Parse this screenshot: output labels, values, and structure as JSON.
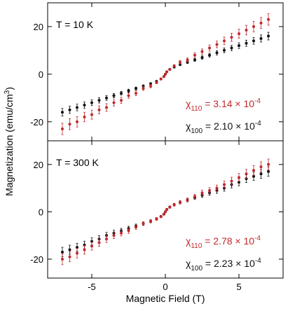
{
  "figure": {
    "xlabel": "Magnetic Field (T)",
    "ylabel": "Magnetization (emu/cm",
    "ylabel_sup": "3",
    "ylabel_end": ")"
  },
  "chart_data": [
    {
      "type": "scatter",
      "panel": "top",
      "annotation": "T = 10 K",
      "xlim": [
        -8,
        8
      ],
      "ylim": [
        -28,
        30
      ],
      "x_ticks": [
        -5,
        0,
        5
      ],
      "y_ticks": [
        -20,
        0,
        20
      ],
      "x_tick_labels": [
        "-5",
        "0",
        "5"
      ],
      "y_tick_labels": [
        "-20",
        "0",
        "20"
      ],
      "grid": false,
      "legend": [
        {
          "chi": "χ",
          "sub": "110",
          "value": " = 3.14 × 10",
          "exp": "-4",
          "color": "#c0282d"
        },
        {
          "chi": "χ",
          "sub": "100",
          "value": " = 2.10 × 10",
          "exp": "-4",
          "color": "#111111"
        }
      ],
      "series": [
        {
          "color": "#111111",
          "x": [
            -7,
            -6.5,
            -6,
            -5.5,
            -5,
            -4.5,
            -4,
            -3.5,
            -3,
            -2.5,
            -2,
            -1.5,
            -1,
            -0.6,
            -0.3,
            -0.1,
            0,
            0.1,
            0.3,
            0.6,
            1,
            1.5,
            2,
            2.5,
            3,
            3.5,
            4,
            4.5,
            5,
            5.5,
            6,
            6.5,
            7
          ],
          "y": [
            -16,
            -15,
            -14,
            -13,
            -12,
            -11,
            -10,
            -9,
            -8,
            -7,
            -6,
            -5,
            -4,
            -3,
            -2,
            -1,
            0,
            1,
            2,
            3,
            4,
            5,
            6,
            7,
            8,
            9,
            10,
            11,
            12,
            13,
            14,
            15,
            16
          ],
          "err": [
            1.6,
            1.5,
            1.4,
            1.3,
            1.2,
            1.1,
            1.0,
            0.9,
            0.8,
            0.7,
            0.6,
            0.5,
            0.4,
            0.3,
            0.3,
            0.3,
            0.3,
            0.3,
            0.3,
            0.3,
            0.4,
            0.5,
            0.6,
            0.7,
            0.8,
            0.9,
            1.0,
            1.1,
            1.2,
            1.3,
            1.4,
            1.5,
            1.6
          ]
        },
        {
          "color": "#c0282d",
          "x": [
            -7,
            -6.5,
            -6,
            -5.5,
            -5,
            -4.5,
            -4,
            -3.5,
            -3,
            -2.5,
            -2,
            -1.5,
            -1,
            -0.6,
            -0.3,
            -0.1,
            0,
            0.1,
            0.3,
            0.6,
            1,
            1.5,
            2,
            2.5,
            3,
            3.5,
            4,
            4.5,
            5,
            5.5,
            6,
            6.5,
            7
          ],
          "y": [
            -23,
            -21,
            -20,
            -18,
            -17,
            -15,
            -14,
            -12,
            -11,
            -9,
            -8,
            -6,
            -5,
            -3.5,
            -2,
            -1,
            0,
            1,
            2,
            3.5,
            5,
            6,
            8,
            9.5,
            11,
            12.5,
            14,
            15.5,
            17,
            18.5,
            20,
            21.5,
            23
          ],
          "err": [
            2.4,
            2.3,
            2.2,
            2.0,
            1.9,
            1.7,
            1.6,
            1.4,
            1.3,
            1.1,
            1.0,
            0.8,
            0.7,
            0.5,
            0.4,
            0.3,
            0.3,
            0.3,
            0.4,
            0.5,
            0.7,
            0.8,
            1.0,
            1.1,
            1.3,
            1.4,
            1.6,
            1.7,
            1.9,
            2.0,
            2.2,
            2.3,
            2.4
          ]
        }
      ]
    },
    {
      "type": "scatter",
      "panel": "bottom",
      "annotation": "T = 300 K",
      "xlim": [
        -8,
        8
      ],
      "ylim": [
        -28,
        30
      ],
      "x_ticks": [
        -5,
        0,
        5
      ],
      "y_ticks": [
        -20,
        0,
        20
      ],
      "x_tick_labels": [
        "-5",
        "0",
        "5"
      ],
      "y_tick_labels": [
        "-20",
        "0",
        "20"
      ],
      "grid": false,
      "legend": [
        {
          "chi": "χ",
          "sub": "110",
          "value": " = 2.78 × 10",
          "exp": "-4",
          "color": "#c0282d"
        },
        {
          "chi": "χ",
          "sub": "100",
          "value": " = 2.23 × 10",
          "exp": "-4",
          "color": "#111111"
        }
      ],
      "series": [
        {
          "color": "#111111",
          "x": [
            -7,
            -6.5,
            -6,
            -5.5,
            -5,
            -4.5,
            -4,
            -3.5,
            -3,
            -2.5,
            -2,
            -1.5,
            -1,
            -0.6,
            -0.3,
            -0.1,
            0,
            0.1,
            0.3,
            0.6,
            1,
            1.5,
            2,
            2.5,
            3,
            3.5,
            4,
            4.5,
            5,
            5.5,
            6,
            6.5,
            7
          ],
          "y": [
            -17,
            -16,
            -15,
            -14,
            -12.5,
            -11.5,
            -10,
            -9,
            -8,
            -7,
            -6,
            -5,
            -4,
            -3,
            -2,
            -1,
            0,
            1,
            2,
            3,
            4,
            5,
            6,
            7,
            8,
            9,
            10,
            11.5,
            12.5,
            14,
            15,
            16,
            17
          ],
          "err": [
            2.0,
            1.9,
            1.7,
            1.6,
            1.5,
            1.4,
            1.3,
            1.2,
            1.0,
            0.9,
            0.8,
            0.7,
            0.6,
            0.5,
            0.4,
            0.4,
            0.4,
            0.4,
            0.4,
            0.5,
            0.6,
            0.7,
            0.8,
            0.9,
            1.0,
            1.2,
            1.3,
            1.4,
            1.5,
            1.6,
            1.7,
            1.9,
            2.0
          ]
        },
        {
          "color": "#c0282d",
          "x": [
            -7,
            -6.5,
            -6,
            -5.5,
            -5,
            -4.5,
            -4,
            -3.5,
            -3,
            -2.5,
            -2,
            -1.5,
            -1,
            -0.6,
            -0.3,
            -0.1,
            0,
            0.1,
            0.3,
            0.6,
            1,
            1.5,
            2,
            2.5,
            3,
            3.5,
            4,
            4.5,
            5,
            5.5,
            6,
            6.5,
            7
          ],
          "y": [
            -20,
            -19,
            -17.5,
            -16,
            -14.5,
            -13,
            -11.5,
            -10,
            -9,
            -8,
            -6.5,
            -5,
            -4,
            -3,
            -2,
            -1,
            0,
            1,
            2,
            3,
            4,
            5,
            6.5,
            8,
            9,
            10,
            11.5,
            13,
            14.5,
            16,
            17.5,
            19,
            20
          ],
          "err": [
            2.3,
            2.1,
            2.0,
            1.9,
            1.7,
            1.6,
            1.5,
            1.3,
            1.2,
            1.1,
            0.9,
            0.8,
            0.7,
            0.6,
            0.5,
            0.4,
            0.4,
            0.4,
            0.5,
            0.6,
            0.7,
            0.8,
            0.9,
            1.1,
            1.2,
            1.3,
            1.5,
            1.6,
            1.7,
            1.9,
            2.0,
            2.1,
            2.3
          ]
        }
      ]
    }
  ]
}
